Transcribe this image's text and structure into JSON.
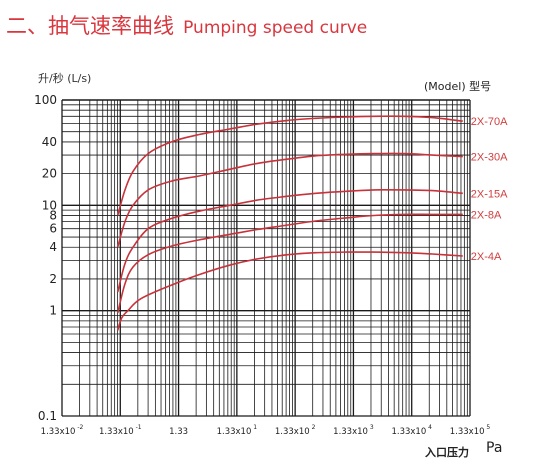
{
  "title": {
    "zh": "二、抽气速率曲线",
    "en": "Pumping speed curve"
  },
  "colors": {
    "curve": "#c8323a",
    "title": "#d9363e",
    "grid": "#1a1a1a"
  },
  "chart_data": {
    "type": "line",
    "ylabel": "升/秒 (L/s)",
    "xlabel": "入口压力",
    "xunit": "Pa",
    "legend_title": "(Model) 型号",
    "y_scale": "log",
    "x_scale": "log",
    "ylim": [
      0.1,
      100
    ],
    "xlim": [
      0.0133,
      133000
    ],
    "y_ticks": [
      "0.1",
      "1",
      "2",
      "4",
      "6",
      "8",
      "10",
      "20",
      "40",
      "100"
    ],
    "x_ticks": [
      {
        "base": "1.33x10",
        "exp": "-2"
      },
      {
        "base": "1.33x10",
        "exp": "-1"
      },
      {
        "base": "1.33",
        "exp": ""
      },
      {
        "base": "1.33x10",
        "exp": "1"
      },
      {
        "base": "1.33x10",
        "exp": "2"
      },
      {
        "base": "1.33x10",
        "exp": "3"
      },
      {
        "base": "1.33x10",
        "exp": "4"
      },
      {
        "base": "1.33x10",
        "exp": "5"
      }
    ],
    "series": [
      {
        "name": "2X-70A",
        "x": [
          0.12,
          0.16,
          0.22,
          0.4,
          1,
          3,
          10,
          30,
          100,
          300,
          1000,
          3000,
          10000,
          30000,
          100000
        ],
        "y": [
          8,
          14,
          21,
          31,
          40,
          47,
          53,
          59,
          64,
          67,
          69,
          70,
          70,
          68,
          63
        ]
      },
      {
        "name": "2X-30A",
        "x": [
          0.12,
          0.16,
          0.22,
          0.4,
          1,
          3,
          10,
          30,
          100,
          300,
          1000,
          3000,
          10000,
          30000,
          100000
        ],
        "y": [
          4,
          7,
          10,
          14,
          17,
          19,
          22,
          25,
          27.5,
          29.5,
          30.5,
          31,
          31,
          30,
          29
        ]
      },
      {
        "name": "2X-15A",
        "x": [
          0.12,
          0.16,
          0.22,
          0.4,
          1,
          3,
          10,
          30,
          100,
          300,
          1000,
          3000,
          10000,
          30000,
          100000
        ],
        "y": [
          1.5,
          2.8,
          4,
          6,
          7.5,
          8.8,
          10,
          11.2,
          12.2,
          13,
          13.6,
          14,
          14,
          13.8,
          13
        ]
      },
      {
        "name": "2X-8A",
        "x": [
          0.12,
          0.16,
          0.22,
          0.4,
          1,
          3,
          10,
          30,
          100,
          300,
          1000,
          3000,
          10000,
          30000,
          100000
        ],
        "y": [
          0.95,
          1.8,
          2.6,
          3.4,
          4.1,
          4.7,
          5.3,
          5.9,
          6.5,
          7.1,
          7.6,
          8,
          8.2,
          8.2,
          8.2
        ]
      },
      {
        "name": "2X-4A",
        "x": [
          0.12,
          0.14,
          0.18,
          0.3,
          1,
          3,
          10,
          30,
          100,
          300,
          1000,
          3000,
          10000,
          30000,
          100000
        ],
        "y": [
          0.65,
          0.85,
          1,
          1.3,
          1.75,
          2.2,
          2.7,
          3.1,
          3.4,
          3.55,
          3.6,
          3.6,
          3.55,
          3.45,
          3.3
        ]
      }
    ]
  }
}
